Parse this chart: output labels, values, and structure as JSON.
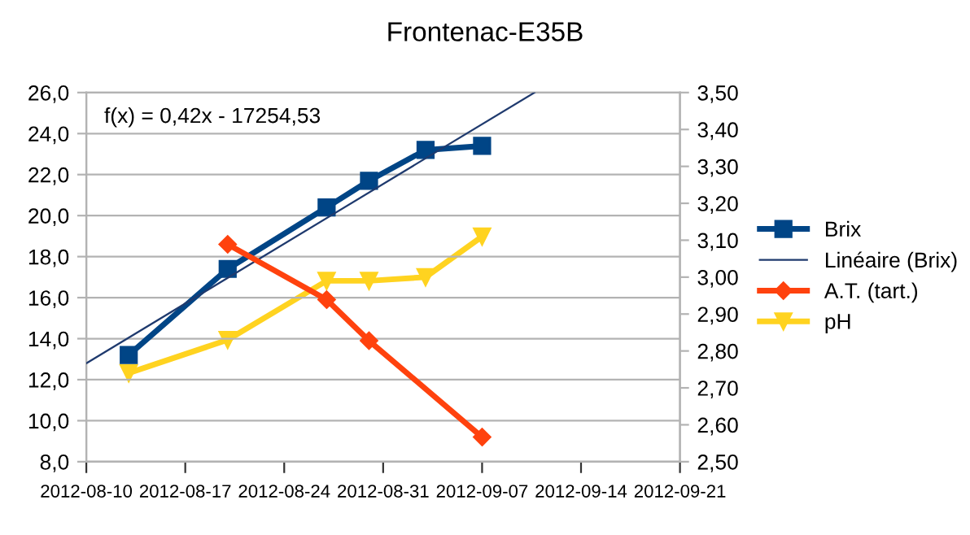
{
  "chart_data": {
    "type": "line",
    "title": "Frontenac-E35B",
    "annotations": [
      "f(x) = 0,42x - 17254,53"
    ],
    "x": [
      "2012-08-13",
      "2012-08-20",
      "2012-08-27",
      "2012-08-30",
      "2012-09-03",
      "2012-09-07"
    ],
    "series": [
      {
        "name": "Brix",
        "color": "#004586",
        "marker": "square",
        "values": [
          13.2,
          17.4,
          20.4,
          21.7,
          23.2,
          23.4
        ]
      },
      {
        "name": "Linéaire (Brix)",
        "color": "#1f3a6e",
        "marker": "none",
        "x": [
          "2012-08-10",
          "2012-09-10T17:00"
        ],
        "values": [
          12.8,
          26.0
        ]
      },
      {
        "name": "A.T. (tart.)",
        "color": "#ff420e",
        "marker": "diamond",
        "x": [
          "2012-08-20",
          "2012-08-27",
          "2012-08-30",
          "2012-09-07"
        ],
        "values": [
          18.6,
          15.9,
          13.9,
          9.2
        ]
      },
      {
        "name": "pH",
        "color": "#ffd320",
        "marker": "triangle",
        "axis": "y2",
        "values": [
          2.74,
          2.83,
          2.99,
          2.99,
          3.0,
          3.11
        ]
      }
    ],
    "xlim": [
      "2012-08-10",
      "2012-09-21"
    ],
    "xticks": [
      "2012-08-10",
      "2012-08-17",
      "2012-08-24",
      "2012-08-31",
      "2012-09-07",
      "2012-09-14",
      "2012-09-21"
    ],
    "ylim": [
      8,
      26
    ],
    "yticks": [
      {
        "value": 8,
        "label": "8,0"
      },
      {
        "value": 10,
        "label": "10,0"
      },
      {
        "value": 12,
        "label": "12,0"
      },
      {
        "value": 14,
        "label": "14,0"
      },
      {
        "value": 16,
        "label": "16,0"
      },
      {
        "value": 18,
        "label": "18,0"
      },
      {
        "value": 20,
        "label": "20,0"
      },
      {
        "value": 22,
        "label": "22,0"
      },
      {
        "value": 24,
        "label": "24,0"
      },
      {
        "value": 26,
        "label": "26,0"
      }
    ],
    "y2lim": [
      2.5,
      3.5
    ],
    "y2ticks": [
      {
        "value": 2.5,
        "label": "2,50"
      },
      {
        "value": 2.6,
        "label": "2,60"
      },
      {
        "value": 2.7,
        "label": "2,70"
      },
      {
        "value": 2.8,
        "label": "2,80"
      },
      {
        "value": 2.9,
        "label": "2,90"
      },
      {
        "value": 3.0,
        "label": "3,00"
      },
      {
        "value": 3.1,
        "label": "3,10"
      },
      {
        "value": 3.2,
        "label": "3,20"
      },
      {
        "value": 3.3,
        "label": "3,30"
      },
      {
        "value": 3.4,
        "label": "3,40"
      },
      {
        "value": 3.5,
        "label": "3,50"
      }
    ],
    "grid": "y",
    "legend": "right"
  }
}
